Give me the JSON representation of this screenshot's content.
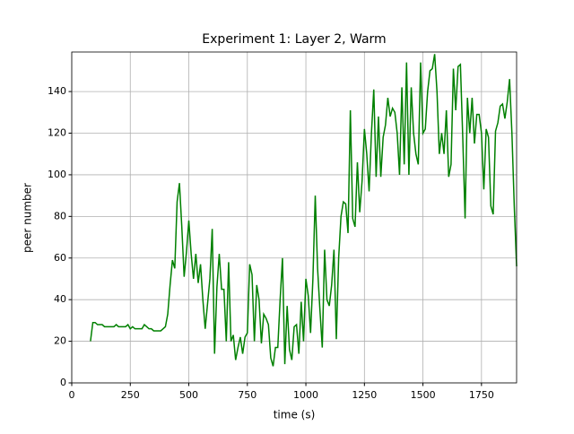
{
  "chart_data": {
    "type": "line",
    "title": "Experiment 1: Layer 2, Warm",
    "x_label": "time (s)",
    "y_label": "peer number",
    "x": [
      80,
      90,
      100,
      110,
      120,
      130,
      140,
      150,
      160,
      170,
      180,
      190,
      200,
      210,
      220,
      230,
      240,
      250,
      260,
      270,
      280,
      290,
      300,
      310,
      320,
      330,
      340,
      350,
      360,
      370,
      380,
      390,
      400,
      410,
      420,
      430,
      440,
      450,
      460,
      470,
      480,
      490,
      500,
      510,
      520,
      530,
      540,
      550,
      560,
      570,
      580,
      590,
      600,
      610,
      620,
      630,
      640,
      650,
      660,
      670,
      680,
      690,
      700,
      710,
      720,
      730,
      740,
      750,
      760,
      770,
      780,
      790,
      800,
      810,
      820,
      830,
      840,
      850,
      860,
      870,
      880,
      890,
      900,
      910,
      920,
      930,
      940,
      950,
      960,
      970,
      980,
      990,
      1000,
      1010,
      1020,
      1030,
      1040,
      1050,
      1060,
      1070,
      1080,
      1090,
      1100,
      1110,
      1120,
      1130,
      1140,
      1150,
      1160,
      1170,
      1180,
      1190,
      1200,
      1210,
      1220,
      1230,
      1240,
      1250,
      1260,
      1270,
      1280,
      1290,
      1300,
      1310,
      1320,
      1330,
      1340,
      1350,
      1360,
      1370,
      1380,
      1390,
      1400,
      1410,
      1420,
      1430,
      1440,
      1450,
      1460,
      1470,
      1480,
      1490,
      1500,
      1510,
      1520,
      1530,
      1540,
      1550,
      1560,
      1570,
      1580,
      1590,
      1600,
      1610,
      1620,
      1630,
      1640,
      1650,
      1660,
      1670,
      1680,
      1690,
      1700,
      1710,
      1720,
      1730,
      1740,
      1750,
      1760,
      1770,
      1780,
      1790,
      1800,
      1810,
      1820,
      1830,
      1840,
      1850,
      1860,
      1870,
      1880,
      1890,
      1900
    ],
    "series": [
      {
        "color": "#008000",
        "values": [
          20,
          29,
          29,
          28,
          28,
          28,
          27,
          27,
          27,
          27,
          27,
          28,
          27,
          27,
          27,
          27,
          28,
          26,
          27,
          26,
          26,
          26,
          26,
          28,
          27,
          26,
          26,
          25,
          25,
          25,
          25,
          26,
          27,
          33,
          47,
          59,
          55,
          87,
          96,
          75,
          51,
          63,
          78,
          62,
          50,
          62,
          48,
          57,
          40,
          26,
          38,
          50,
          74,
          14,
          46,
          62,
          45,
          45,
          20,
          58,
          20,
          23,
          11,
          17,
          22,
          14,
          22,
          24,
          57,
          52,
          20,
          47,
          40,
          19,
          33,
          31,
          28,
          12,
          8,
          17,
          17,
          40,
          60,
          9,
          37,
          16,
          11,
          27,
          28,
          14,
          39,
          20,
          50,
          42,
          24,
          50,
          90,
          55,
          35,
          17,
          64,
          40,
          37,
          47,
          64,
          21,
          60,
          80,
          87,
          86,
          72,
          131,
          79,
          75,
          106,
          82,
          97,
          122,
          110,
          92,
          120,
          141,
          99,
          128,
          99,
          118,
          124,
          137,
          128,
          132,
          130,
          120,
          100,
          142,
          105,
          154,
          100,
          142,
          120,
          110,
          105,
          154,
          120,
          122,
          140,
          150,
          151,
          158,
          140,
          110,
          120,
          110,
          131,
          99,
          105,
          151,
          131,
          152,
          153,
          118,
          79,
          137,
          120,
          137,
          115,
          129,
          129,
          120,
          93,
          122,
          118,
          85,
          81,
          121,
          125,
          133,
          134,
          127,
          135,
          146,
          120,
          85,
          56
        ]
      }
    ],
    "xlim": [
      0,
      1900
    ],
    "xticks": [
      0,
      250,
      500,
      750,
      1000,
      1250,
      1500,
      1750
    ],
    "ylim": [
      0,
      159
    ],
    "yticks": [
      0,
      20,
      40,
      60,
      80,
      100,
      120,
      140
    ],
    "grid": true
  }
}
